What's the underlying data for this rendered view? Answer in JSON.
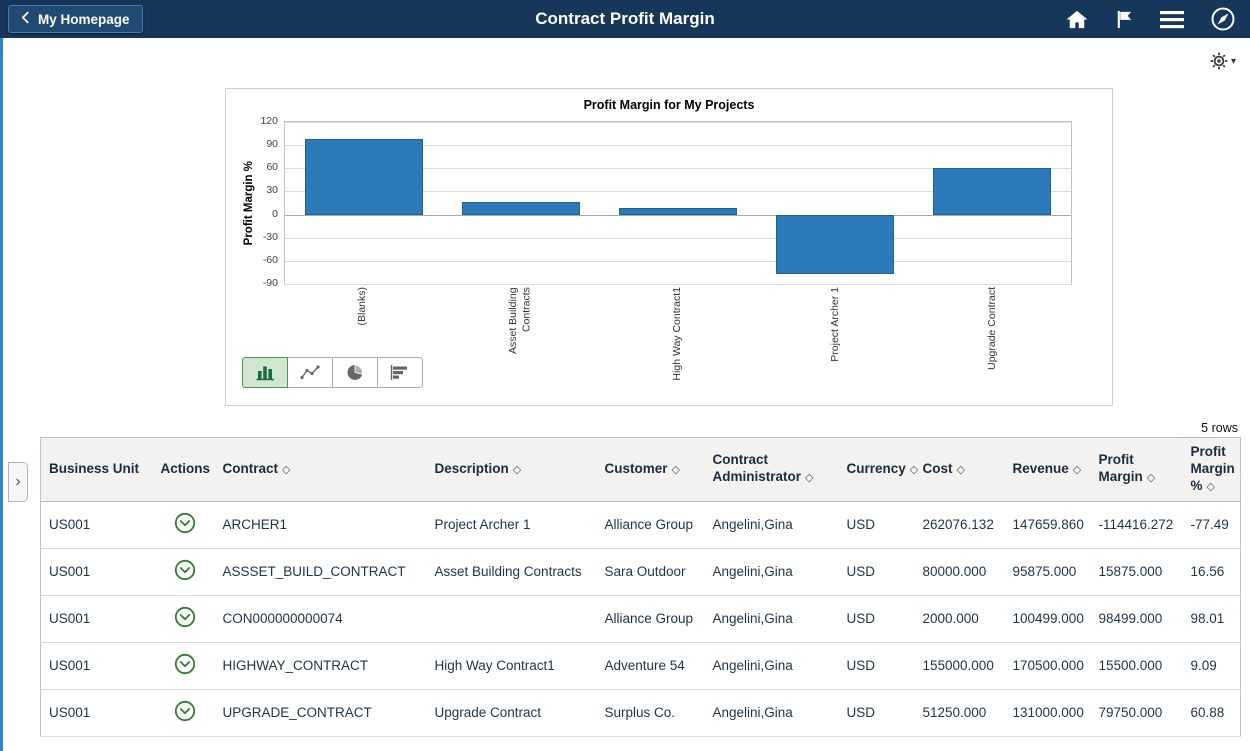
{
  "header": {
    "back_label": "My Homepage",
    "title": "Contract Profit Margin",
    "icons": [
      "home-icon",
      "flag-icon",
      "actions-menu-icon",
      "navbar-compass-icon"
    ]
  },
  "toolbar": {
    "gear_icon": "gear-icon",
    "gear_caret": "▾"
  },
  "chart_data": {
    "type": "bar",
    "title": "Profit Margin for My Projects",
    "ylabel": "Profit Margin %",
    "categories": [
      "(Blanks)",
      "Asset Building Contracts",
      "High Way Contract1",
      "Project Archer 1",
      "Upgrade Contract"
    ],
    "values": [
      98.01,
      16.56,
      9.09,
      -77.49,
      60.88
    ],
    "ylim": [
      -90,
      120
    ],
    "yticks": [
      120,
      90,
      60,
      30,
      0,
      -30,
      -60,
      -90
    ],
    "bar_color": "#2d7ab8",
    "grid": "horizontal",
    "legend_position": "none"
  },
  "chart_types": [
    {
      "name": "bar-chart",
      "selected": true
    },
    {
      "name": "line-chart",
      "selected": false
    },
    {
      "name": "pie-chart",
      "selected": false
    },
    {
      "name": "horizontal-bar-chart",
      "selected": false
    }
  ],
  "sort_icon": "◇",
  "expander_icon": "›",
  "grid": {
    "rows_label": "5 rows",
    "columns": [
      {
        "key": "business_unit",
        "label": "Business Unit",
        "sortable": false
      },
      {
        "key": "actions",
        "label": "Actions",
        "sortable": false,
        "type": "action"
      },
      {
        "key": "contract",
        "label": "Contract",
        "sortable": true
      },
      {
        "key": "description",
        "label": "Description",
        "sortable": true
      },
      {
        "key": "customer",
        "label": "Customer",
        "sortable": true
      },
      {
        "key": "contract_administrator",
        "label": "Contract Administrator",
        "sortable": true
      },
      {
        "key": "currency",
        "label": "Currency",
        "sortable": true
      },
      {
        "key": "cost",
        "label": "Cost",
        "sortable": true
      },
      {
        "key": "revenue",
        "label": "Revenue",
        "sortable": true
      },
      {
        "key": "profit_margin",
        "label": "Profit Margin",
        "sortable": true
      },
      {
        "key": "profit_margin_pct",
        "label": "Profit Margin %",
        "sortable": true
      }
    ],
    "rows": [
      {
        "business_unit": "US001",
        "contract": "ARCHER1",
        "description": "Project Archer 1",
        "customer": "Alliance Group",
        "contract_administrator": "Angelini,Gina",
        "currency": "USD",
        "cost": "262076.132",
        "revenue": "147659.860",
        "profit_margin": "-114416.272",
        "profit_margin_pct": "-77.49"
      },
      {
        "business_unit": "US001",
        "contract": "ASSSET_BUILD_CONTRACT",
        "description": "Asset Building Contracts",
        "customer": "Sara Outdoor",
        "contract_administrator": "Angelini,Gina",
        "currency": "USD",
        "cost": "80000.000",
        "revenue": "95875.000",
        "profit_margin": "15875.000",
        "profit_margin_pct": "16.56"
      },
      {
        "business_unit": "US001",
        "contract": "CON000000000074",
        "description": "",
        "customer": "Alliance Group",
        "contract_administrator": "Angelini,Gina",
        "currency": "USD",
        "cost": "2000.000",
        "revenue": "100499.000",
        "profit_margin": "98499.000",
        "profit_margin_pct": "98.01"
      },
      {
        "business_unit": "US001",
        "contract": "HIGHWAY_CONTRACT",
        "description": "High Way Contract1",
        "customer": "Adventure 54",
        "contract_administrator": "Angelini,Gina",
        "currency": "USD",
        "cost": "155000.000",
        "revenue": "170500.000",
        "profit_margin": "15500.000",
        "profit_margin_pct": "9.09"
      },
      {
        "business_unit": "US001",
        "contract": "UPGRADE_CONTRACT",
        "description": "Upgrade Contract",
        "customer": "Surplus Co.",
        "contract_administrator": "Angelini,Gina",
        "currency": "USD",
        "cost": "51250.000",
        "revenue": "131000.000",
        "profit_margin": "79750.000",
        "profit_margin_pct": "60.88"
      }
    ]
  }
}
